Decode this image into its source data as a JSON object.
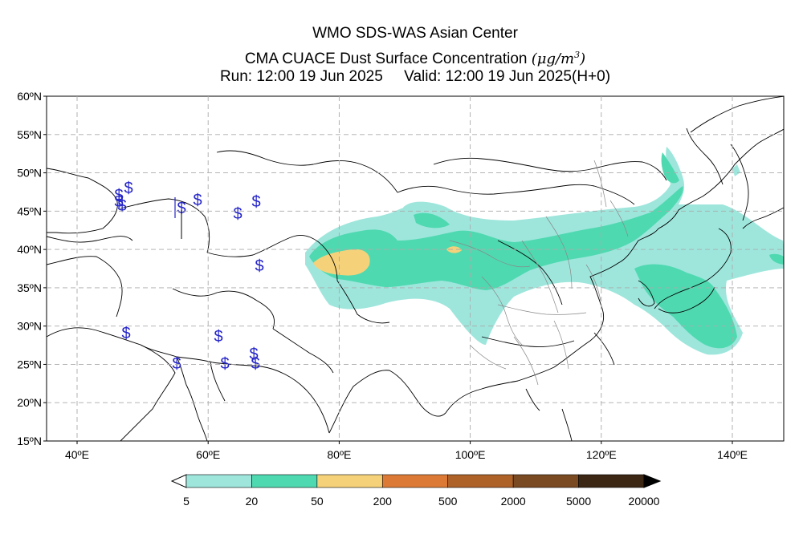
{
  "title": {
    "line1": "WMO SDS-WAS Asian Center",
    "line2": "CMA CUACE Dust Surface Concentration",
    "line2_unit": "(μg/m",
    "line2_unit_sup": "3",
    "line2_unit_close": ")",
    "line3": "Run: 12:00 19 Jun 2025     Valid: 12:00 19 Jun 2025(H+0)"
  },
  "map": {
    "lat_labels": [
      "60ºN",
      "55ºN",
      "50ºN",
      "45ºN",
      "40ºN",
      "35ºN",
      "30ºN",
      "25ºN",
      "20ºN",
      "15ºN"
    ],
    "lon_labels": [
      "40ºE",
      "60ºE",
      "80ºE",
      "100ºE",
      "120ºE",
      "140ºE"
    ],
    "gridlines": "dashed",
    "dust_levels_present": [
      5,
      20,
      50
    ],
    "station_symbol": "$",
    "station_color": "#2424c8"
  },
  "colorbar": {
    "labels": [
      "5",
      "20",
      "50",
      "200",
      "500",
      "2000",
      "5000",
      "20000"
    ],
    "colors": [
      "#9ee6dc",
      "#4fd9b0",
      "#f5d27a",
      "#dc7a35",
      "#ae6228",
      "#7a4a22",
      "#3c2614"
    ]
  }
}
